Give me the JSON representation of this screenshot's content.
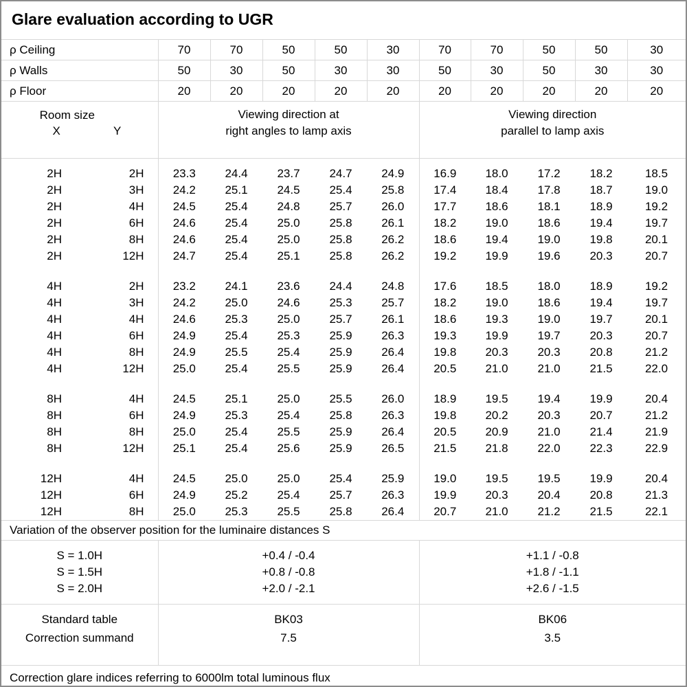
{
  "title": "Glare evaluation according to UGR",
  "colors": {
    "grid": "#d8d8d8",
    "outer_border": "#8c8c8c",
    "text": "#000000"
  },
  "reflectance": {
    "ceiling_label": "ρ Ceiling",
    "walls_label": "ρ Walls",
    "floor_label": "ρ Floor",
    "ceiling": [
      "70",
      "70",
      "50",
      "50",
      "30",
      "70",
      "70",
      "50",
      "50",
      "30"
    ],
    "walls": [
      "50",
      "30",
      "50",
      "30",
      "30",
      "50",
      "30",
      "50",
      "30",
      "30"
    ],
    "floor": [
      "20",
      "20",
      "20",
      "20",
      "20",
      "20",
      "20",
      "20",
      "20",
      "20"
    ]
  },
  "header": {
    "room_size": "Room size",
    "x_label": "X",
    "y_label": "Y",
    "left_heading_line1": "Viewing direction at",
    "left_heading_line2": "right angles to lamp axis",
    "right_heading_line1": "Viewing direction",
    "right_heading_line2": "parallel to lamp axis"
  },
  "table": {
    "groups": [
      [
        {
          "x": "2H",
          "y": "2H",
          "perp": [
            "23.3",
            "24.4",
            "23.7",
            "24.7",
            "24.9"
          ],
          "para": [
            "16.9",
            "18.0",
            "17.2",
            "18.2",
            "18.5"
          ]
        },
        {
          "x": "2H",
          "y": "3H",
          "perp": [
            "24.2",
            "25.1",
            "24.5",
            "25.4",
            "25.8"
          ],
          "para": [
            "17.4",
            "18.4",
            "17.8",
            "18.7",
            "19.0"
          ]
        },
        {
          "x": "2H",
          "y": "4H",
          "perp": [
            "24.5",
            "25.4",
            "24.8",
            "25.7",
            "26.0"
          ],
          "para": [
            "17.7",
            "18.6",
            "18.1",
            "18.9",
            "19.2"
          ]
        },
        {
          "x": "2H",
          "y": "6H",
          "perp": [
            "24.6",
            "25.4",
            "25.0",
            "25.8",
            "26.1"
          ],
          "para": [
            "18.2",
            "19.0",
            "18.6",
            "19.4",
            "19.7"
          ]
        },
        {
          "x": "2H",
          "y": "8H",
          "perp": [
            "24.6",
            "25.4",
            "25.0",
            "25.8",
            "26.2"
          ],
          "para": [
            "18.6",
            "19.4",
            "19.0",
            "19.8",
            "20.1"
          ]
        },
        {
          "x": "2H",
          "y": "12H",
          "perp": [
            "24.7",
            "25.4",
            "25.1",
            "25.8",
            "26.2"
          ],
          "para": [
            "19.2",
            "19.9",
            "19.6",
            "20.3",
            "20.7"
          ]
        }
      ],
      [
        {
          "x": "4H",
          "y": "2H",
          "perp": [
            "23.2",
            "24.1",
            "23.6",
            "24.4",
            "24.8"
          ],
          "para": [
            "17.6",
            "18.5",
            "18.0",
            "18.9",
            "19.2"
          ]
        },
        {
          "x": "4H",
          "y": "3H",
          "perp": [
            "24.2",
            "25.0",
            "24.6",
            "25.3",
            "25.7"
          ],
          "para": [
            "18.2",
            "19.0",
            "18.6",
            "19.4",
            "19.7"
          ]
        },
        {
          "x": "4H",
          "y": "4H",
          "perp": [
            "24.6",
            "25.3",
            "25.0",
            "25.7",
            "26.1"
          ],
          "para": [
            "18.6",
            "19.3",
            "19.0",
            "19.7",
            "20.1"
          ]
        },
        {
          "x": "4H",
          "y": "6H",
          "perp": [
            "24.9",
            "25.4",
            "25.3",
            "25.9",
            "26.3"
          ],
          "para": [
            "19.3",
            "19.9",
            "19.7",
            "20.3",
            "20.7"
          ]
        },
        {
          "x": "4H",
          "y": "8H",
          "perp": [
            "24.9",
            "25.5",
            "25.4",
            "25.9",
            "26.4"
          ],
          "para": [
            "19.8",
            "20.3",
            "20.3",
            "20.8",
            "21.2"
          ]
        },
        {
          "x": "4H",
          "y": "12H",
          "perp": [
            "25.0",
            "25.4",
            "25.5",
            "25.9",
            "26.4"
          ],
          "para": [
            "20.5",
            "21.0",
            "21.0",
            "21.5",
            "22.0"
          ]
        }
      ],
      [
        {
          "x": "8H",
          "y": "4H",
          "perp": [
            "24.5",
            "25.1",
            "25.0",
            "25.5",
            "26.0"
          ],
          "para": [
            "18.9",
            "19.5",
            "19.4",
            "19.9",
            "20.4"
          ]
        },
        {
          "x": "8H",
          "y": "6H",
          "perp": [
            "24.9",
            "25.3",
            "25.4",
            "25.8",
            "26.3"
          ],
          "para": [
            "19.8",
            "20.2",
            "20.3",
            "20.7",
            "21.2"
          ]
        },
        {
          "x": "8H",
          "y": "8H",
          "perp": [
            "25.0",
            "25.4",
            "25.5",
            "25.9",
            "26.4"
          ],
          "para": [
            "20.5",
            "20.9",
            "21.0",
            "21.4",
            "21.9"
          ]
        },
        {
          "x": "8H",
          "y": "12H",
          "perp": [
            "25.1",
            "25.4",
            "25.6",
            "25.9",
            "26.5"
          ],
          "para": [
            "21.5",
            "21.8",
            "22.0",
            "22.3",
            "22.9"
          ]
        }
      ],
      [
        {
          "x": "12H",
          "y": "4H",
          "perp": [
            "24.5",
            "25.0",
            "25.0",
            "25.4",
            "25.9"
          ],
          "para": [
            "19.0",
            "19.5",
            "19.5",
            "19.9",
            "20.4"
          ]
        },
        {
          "x": "12H",
          "y": "6H",
          "perp": [
            "24.9",
            "25.2",
            "25.4",
            "25.7",
            "26.3"
          ],
          "para": [
            "19.9",
            "20.3",
            "20.4",
            "20.8",
            "21.3"
          ]
        },
        {
          "x": "12H",
          "y": "8H",
          "perp": [
            "25.0",
            "25.3",
            "25.5",
            "25.8",
            "26.4"
          ],
          "para": [
            "20.7",
            "21.0",
            "21.2",
            "21.5",
            "22.1"
          ]
        }
      ]
    ]
  },
  "notes": {
    "variation": "Variation of the observer position for the luminaire distances S",
    "bottom": "Correction glare indices referring to 6000lm total luminous flux"
  },
  "variation": {
    "labels": [
      "S = 1.0H",
      "S = 1.5H",
      "S = 2.0H"
    ],
    "perp": [
      "+0.4 / -0.4",
      "+0.8 / -0.8",
      "+2.0 / -2.1"
    ],
    "para": [
      "+1.1 / -0.8",
      "+1.8 / -1.1",
      "+2.6 / -1.5"
    ]
  },
  "footer": {
    "labels": [
      "Standard table",
      "Correction summand"
    ],
    "perp": [
      "BK03",
      "7.5"
    ],
    "para": [
      "BK06",
      "3.5"
    ]
  }
}
